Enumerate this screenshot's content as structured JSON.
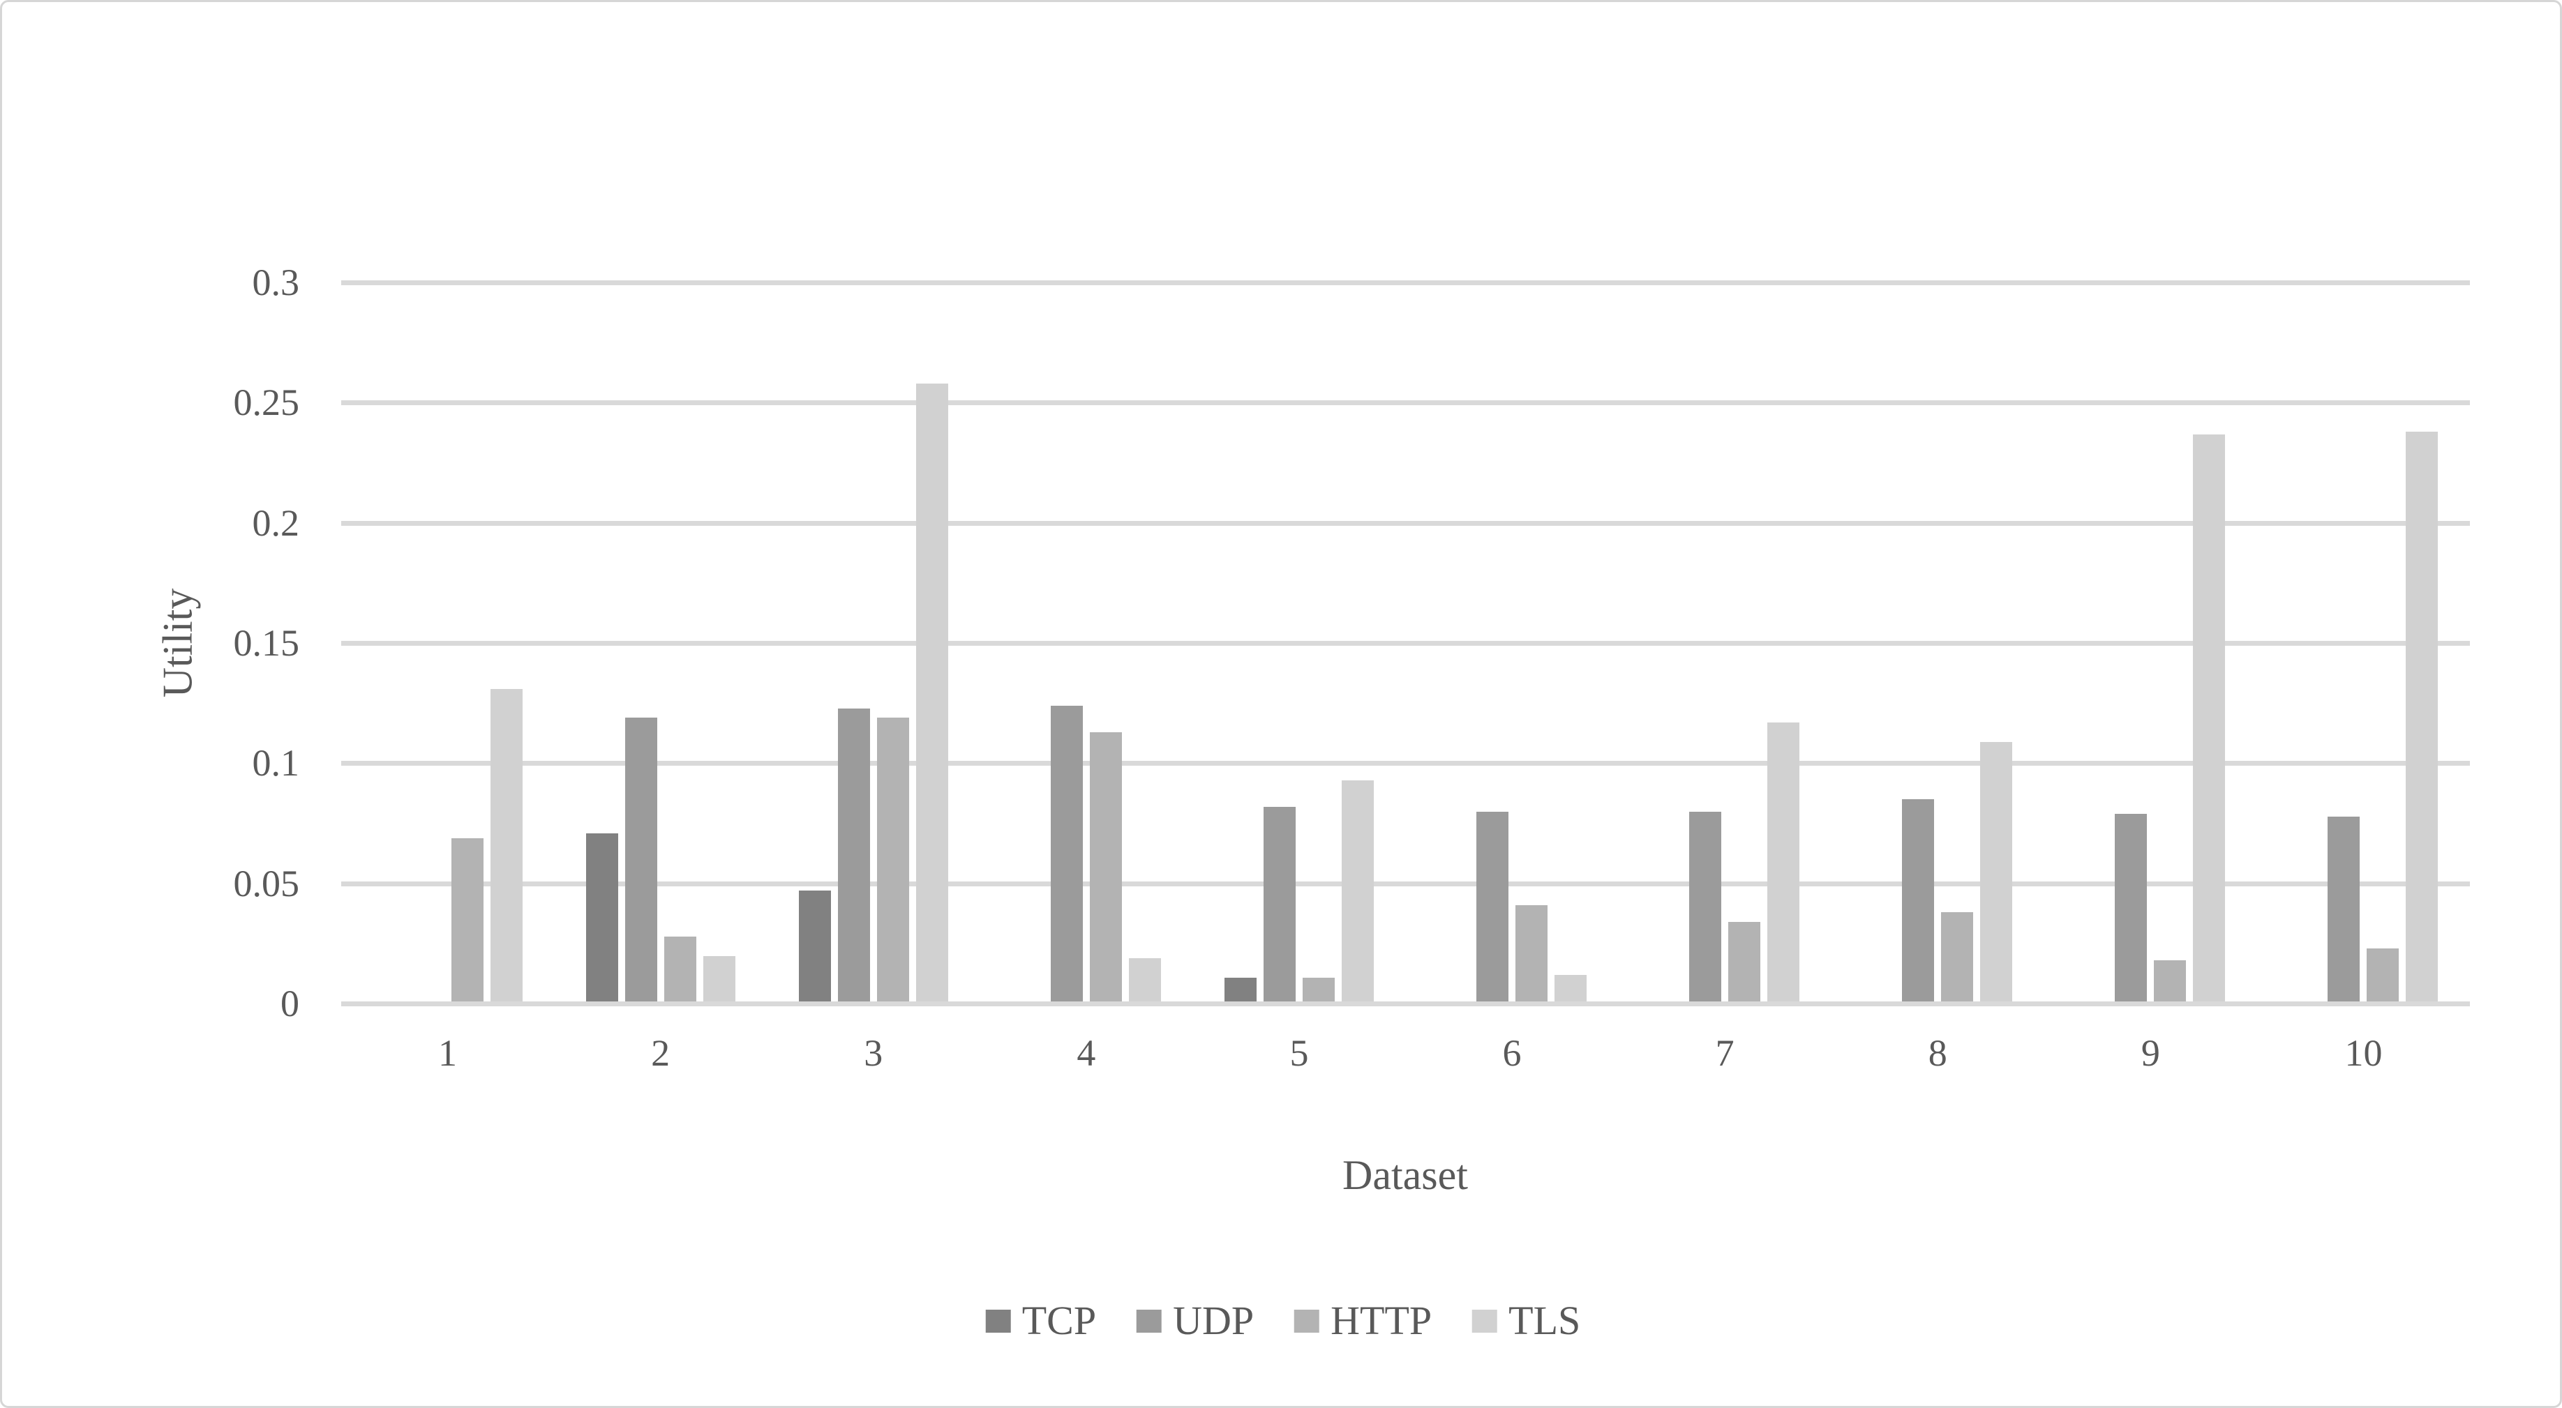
{
  "axis": {
    "y_title": "Utility",
    "x_title": "Dataset"
  },
  "chart_data": {
    "type": "bar",
    "title": "",
    "xlabel": "Dataset",
    "ylabel": "Utility",
    "ylim": [
      0,
      0.3
    ],
    "grid": true,
    "legend_position": "bottom",
    "categories": [
      "1",
      "2",
      "3",
      "4",
      "5",
      "6",
      "7",
      "8",
      "9",
      "10"
    ],
    "yticks": [
      0,
      0.05,
      0.1,
      0.15,
      0.2,
      0.25,
      0.3
    ],
    "ytick_labels": [
      "0",
      "0.05",
      "0.1",
      "0.15",
      "0.2",
      "0.25",
      "0.3"
    ],
    "series": [
      {
        "name": "TCP",
        "color": "#818181",
        "values": [
          0,
          0.07,
          0.046,
          0,
          0.01,
          0,
          0,
          0,
          0,
          0
        ]
      },
      {
        "name": "UDP",
        "color": "#9b9b9b",
        "values": [
          0,
          0.118,
          0.122,
          0.123,
          0.081,
          0.079,
          0.079,
          0.084,
          0.078,
          0.077
        ]
      },
      {
        "name": "HTTP",
        "color": "#b3b3b3",
        "values": [
          0.068,
          0.027,
          0.118,
          0.112,
          0.01,
          0.04,
          0.033,
          0.037,
          0.017,
          0.022
        ]
      },
      {
        "name": "TLS",
        "color": "#d1d1d1",
        "values": [
          0.13,
          0.019,
          0.257,
          0.018,
          0.092,
          0.011,
          0.116,
          0.108,
          0.236,
          0.237
        ]
      }
    ],
    "colors": {
      "gridline": "#d9d9d9",
      "axis_text": "#595959"
    }
  }
}
